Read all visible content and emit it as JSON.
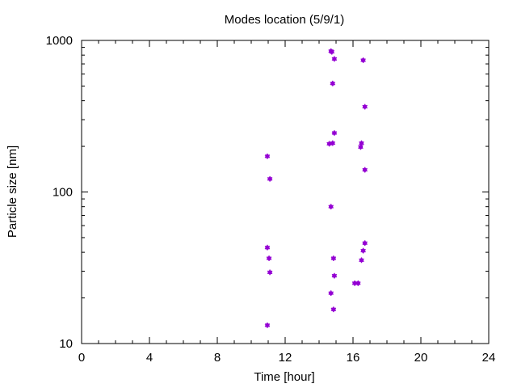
{
  "chart_data": {
    "type": "scatter",
    "title": "Modes location (5/9/1)",
    "xlabel": "Time [hour]",
    "ylabel": "Particle size [nm]",
    "xlim": [
      0,
      24
    ],
    "ylim": [
      10,
      1000
    ],
    "yscale": "log",
    "xticks": [
      0,
      4,
      8,
      12,
      16,
      20,
      24
    ],
    "xtick_labels": [
      "0",
      "4",
      "8",
      "12",
      "16",
      "20",
      "24"
    ],
    "yticks": [
      10,
      100,
      1000
    ],
    "ytick_labels": [
      "10",
      "100",
      "1000"
    ],
    "grid": false,
    "marker_color": "#9400d3",
    "points": [
      {
        "x": 10.95,
        "y": 172
      },
      {
        "x": 11.1,
        "y": 122
      },
      {
        "x": 10.95,
        "y": 43
      },
      {
        "x": 11.05,
        "y": 36.5
      },
      {
        "x": 11.1,
        "y": 29.5
      },
      {
        "x": 10.95,
        "y": 13.2
      },
      {
        "x": 14.7,
        "y": 850
      },
      {
        "x": 14.75,
        "y": 840
      },
      {
        "x": 14.9,
        "y": 755
      },
      {
        "x": 14.8,
        "y": 520
      },
      {
        "x": 14.9,
        "y": 245
      },
      {
        "x": 14.6,
        "y": 208
      },
      {
        "x": 14.8,
        "y": 210
      },
      {
        "x": 14.7,
        "y": 80
      },
      {
        "x": 14.85,
        "y": 36.5
      },
      {
        "x": 14.9,
        "y": 28
      },
      {
        "x": 14.7,
        "y": 21.5
      },
      {
        "x": 14.85,
        "y": 16.8
      },
      {
        "x": 16.6,
        "y": 740
      },
      {
        "x": 16.7,
        "y": 365
      },
      {
        "x": 16.5,
        "y": 210
      },
      {
        "x": 16.45,
        "y": 198
      },
      {
        "x": 16.7,
        "y": 140
      },
      {
        "x": 16.7,
        "y": 46
      },
      {
        "x": 16.6,
        "y": 41
      },
      {
        "x": 16.5,
        "y": 35.5
      },
      {
        "x": 16.1,
        "y": 25
      },
      {
        "x": 16.3,
        "y": 25
      }
    ]
  }
}
